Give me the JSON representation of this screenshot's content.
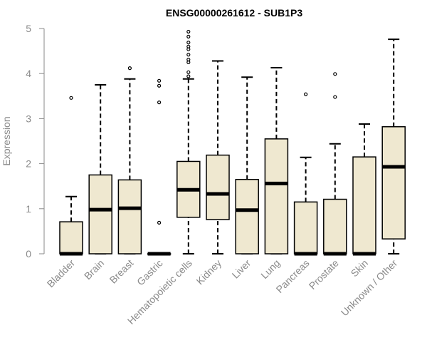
{
  "chart_data": {
    "type": "boxplot",
    "title": "ENSG00000261612 - SUB1P3",
    "xlabel": "",
    "ylabel": "Expression",
    "ylim": [
      0,
      5
    ],
    "yticks": [
      0,
      1,
      2,
      3,
      4,
      5
    ],
    "grid": false,
    "legend": "none",
    "categories": [
      "Bladder",
      "Brain",
      "Breast",
      "Gastric",
      "Hematopoietic cells",
      "Kidney",
      "Liver",
      "Lung",
      "Pancreas",
      "Prostate",
      "Skin",
      "Unknown / Other"
    ],
    "boxes": [
      {
        "category": "Bladder",
        "whisker_low": 0,
        "q1": 0,
        "median": 0,
        "q3": 0.71,
        "whisker_high": 1.27,
        "outliers": [
          3.46
        ]
      },
      {
        "category": "Brain",
        "whisker_low": 0,
        "q1": 0,
        "median": 0.98,
        "q3": 1.75,
        "whisker_high": 3.75,
        "outliers": []
      },
      {
        "category": "Breast",
        "whisker_low": 0,
        "q1": 0,
        "median": 1.01,
        "q3": 1.64,
        "whisker_high": 3.88,
        "outliers": [
          4.12
        ]
      },
      {
        "category": "Gastric",
        "whisker_low": 0,
        "q1": 0,
        "median": 0,
        "q3": 0,
        "whisker_high": 0,
        "outliers": [
          0.69,
          3.36,
          3.73,
          3.84
        ]
      },
      {
        "category": "Hematopoietic cells",
        "whisker_low": 0,
        "q1": 0.81,
        "median": 1.42,
        "q3": 2.05,
        "whisker_high": 3.88,
        "outliers": [
          3.94,
          4.03,
          4.25,
          4.31,
          4.42,
          4.54,
          4.6,
          4.69,
          4.82,
          4.93
        ]
      },
      {
        "category": "Kidney",
        "whisker_low": 0,
        "q1": 0.76,
        "median": 1.33,
        "q3": 2.19,
        "whisker_high": 4.28,
        "outliers": []
      },
      {
        "category": "Liver",
        "whisker_low": 0,
        "q1": 0,
        "median": 0.97,
        "q3": 1.65,
        "whisker_high": 3.92,
        "outliers": []
      },
      {
        "category": "Lung",
        "whisker_low": 0,
        "q1": 0,
        "median": 1.56,
        "q3": 2.55,
        "whisker_high": 4.13,
        "outliers": []
      },
      {
        "category": "Pancreas",
        "whisker_low": 0,
        "q1": 0,
        "median": 0,
        "q3": 1.15,
        "whisker_high": 2.14,
        "outliers": [
          3.54
        ]
      },
      {
        "category": "Prostate",
        "whisker_low": 0,
        "q1": 0,
        "median": 0,
        "q3": 1.21,
        "whisker_high": 2.44,
        "outliers": [
          3.48,
          3.99
        ]
      },
      {
        "category": "Skin",
        "whisker_low": 0,
        "q1": 0,
        "median": 0,
        "q3": 2.15,
        "whisker_high": 2.88,
        "outliers": []
      },
      {
        "category": "Unknown / Other",
        "whisker_low": 0,
        "q1": 0.33,
        "median": 1.93,
        "q3": 2.82,
        "whisker_high": 4.76,
        "outliers": []
      }
    ]
  },
  "style": {
    "box_fill": "#efe8d0",
    "stroke": "#000000",
    "axis_color": "#8a8a8a",
    "label_color": "#8a8a8a",
    "title_color": "#000000"
  }
}
